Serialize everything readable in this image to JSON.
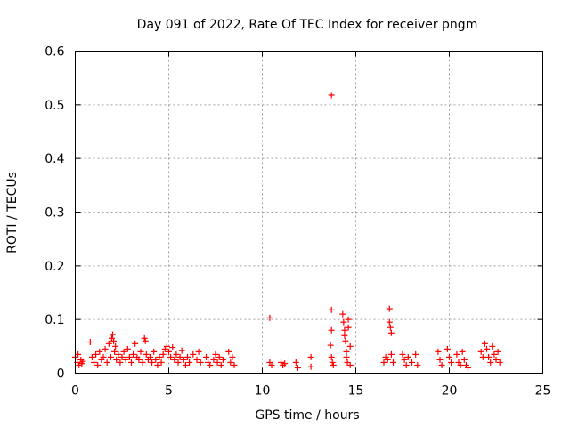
{
  "chart_data": {
    "type": "scatter",
    "title": "Day 091 of 2022, Rate Of TEC Index for receiver pngm",
    "xlabel": "GPS time / hours",
    "ylabel": "ROTI / TECUs",
    "xlim": [
      0,
      25
    ],
    "ylim": [
      0,
      0.6
    ],
    "xticks": [
      0,
      5,
      10,
      15,
      20,
      25
    ],
    "yticks": [
      0,
      0.1,
      0.2,
      0.3,
      0.4,
      0.5,
      0.6
    ],
    "xtick_labels": [
      "0",
      "5",
      "10",
      "15",
      "20",
      "25"
    ],
    "ytick_labels": [
      "0",
      "0.1",
      "0.2",
      "0.3",
      "0.4",
      "0.5",
      "0.6"
    ],
    "grid": true,
    "marker": "+",
    "marker_color": "#ff0000",
    "series": [
      {
        "name": "ROTI",
        "points": [
          [
            0.0,
            0.03
          ],
          [
            0.1,
            0.02
          ],
          [
            0.15,
            0.035
          ],
          [
            0.2,
            0.015
          ],
          [
            0.3,
            0.025
          ],
          [
            0.35,
            0.018
          ],
          [
            0.4,
            0.022
          ],
          [
            0.8,
            0.058
          ],
          [
            0.9,
            0.03
          ],
          [
            1.0,
            0.02
          ],
          [
            1.1,
            0.035
          ],
          [
            1.2,
            0.015
          ],
          [
            1.3,
            0.04
          ],
          [
            1.4,
            0.025
          ],
          [
            1.5,
            0.03
          ],
          [
            1.6,
            0.045
          ],
          [
            1.7,
            0.02
          ],
          [
            1.8,
            0.055
          ],
          [
            1.9,
            0.03
          ],
          [
            1.95,
            0.065
          ],
          [
            2.0,
            0.072
          ],
          [
            2.05,
            0.06
          ],
          [
            2.1,
            0.04
          ],
          [
            2.15,
            0.05
          ],
          [
            2.2,
            0.025
          ],
          [
            2.3,
            0.035
          ],
          [
            2.4,
            0.02
          ],
          [
            2.5,
            0.03
          ],
          [
            2.6,
            0.04
          ],
          [
            2.7,
            0.025
          ],
          [
            2.8,
            0.045
          ],
          [
            2.9,
            0.03
          ],
          [
            3.0,
            0.02
          ],
          [
            3.1,
            0.035
          ],
          [
            3.2,
            0.055
          ],
          [
            3.3,
            0.03
          ],
          [
            3.4,
            0.025
          ],
          [
            3.5,
            0.04
          ],
          [
            3.6,
            0.02
          ],
          [
            3.7,
            0.065
          ],
          [
            3.75,
            0.06
          ],
          [
            3.8,
            0.035
          ],
          [
            3.9,
            0.025
          ],
          [
            4.0,
            0.03
          ],
          [
            4.1,
            0.02
          ],
          [
            4.2,
            0.04
          ],
          [
            4.3,
            0.025
          ],
          [
            4.4,
            0.015
          ],
          [
            4.5,
            0.03
          ],
          [
            4.6,
            0.02
          ],
          [
            4.7,
            0.035
          ],
          [
            4.8,
            0.045
          ],
          [
            4.9,
            0.05
          ],
          [
            5.0,
            0.04
          ],
          [
            5.1,
            0.03
          ],
          [
            5.2,
            0.048
          ],
          [
            5.3,
            0.025
          ],
          [
            5.4,
            0.035
          ],
          [
            5.5,
            0.02
          ],
          [
            5.6,
            0.03
          ],
          [
            5.7,
            0.042
          ],
          [
            5.8,
            0.025
          ],
          [
            5.9,
            0.015
          ],
          [
            6.0,
            0.03
          ],
          [
            6.1,
            0.02
          ],
          [
            6.3,
            0.035
          ],
          [
            6.5,
            0.025
          ],
          [
            6.6,
            0.04
          ],
          [
            6.7,
            0.02
          ],
          [
            7.0,
            0.03
          ],
          [
            7.1,
            0.02
          ],
          [
            7.2,
            0.015
          ],
          [
            7.4,
            0.025
          ],
          [
            7.5,
            0.035
          ],
          [
            7.6,
            0.02
          ],
          [
            7.7,
            0.03
          ],
          [
            7.8,
            0.015
          ],
          [
            7.9,
            0.025
          ],
          [
            8.2,
            0.04
          ],
          [
            8.3,
            0.02
          ],
          [
            8.4,
            0.03
          ],
          [
            8.5,
            0.015
          ],
          [
            10.4,
            0.103
          ],
          [
            10.4,
            0.02
          ],
          [
            10.5,
            0.015
          ],
          [
            11.0,
            0.02
          ],
          [
            11.1,
            0.015
          ],
          [
            11.2,
            0.018
          ],
          [
            11.8,
            0.02
          ],
          [
            11.9,
            0.01
          ],
          [
            12.6,
            0.03
          ],
          [
            12.6,
            0.012
          ],
          [
            13.7,
            0.518
          ],
          [
            13.7,
            0.118
          ],
          [
            13.7,
            0.08
          ],
          [
            13.65,
            0.052
          ],
          [
            13.7,
            0.03
          ],
          [
            13.75,
            0.02
          ],
          [
            13.8,
            0.015
          ],
          [
            14.3,
            0.11
          ],
          [
            14.35,
            0.095
          ],
          [
            14.4,
            0.08
          ],
          [
            14.4,
            0.07
          ],
          [
            14.45,
            0.06
          ],
          [
            14.5,
            0.04
          ],
          [
            14.5,
            0.03
          ],
          [
            14.55,
            0.02
          ],
          [
            14.6,
            0.1
          ],
          [
            14.6,
            0.085
          ],
          [
            14.7,
            0.05
          ],
          [
            14.7,
            0.015
          ],
          [
            16.5,
            0.02
          ],
          [
            16.6,
            0.03
          ],
          [
            16.7,
            0.025
          ],
          [
            16.8,
            0.12
          ],
          [
            16.8,
            0.095
          ],
          [
            16.85,
            0.085
          ],
          [
            16.9,
            0.075
          ],
          [
            16.9,
            0.035
          ],
          [
            17.0,
            0.02
          ],
          [
            17.5,
            0.035
          ],
          [
            17.6,
            0.025
          ],
          [
            17.7,
            0.015
          ],
          [
            17.8,
            0.03
          ],
          [
            18.0,
            0.02
          ],
          [
            18.2,
            0.035
          ],
          [
            18.3,
            0.015
          ],
          [
            19.4,
            0.04
          ],
          [
            19.5,
            0.025
          ],
          [
            19.6,
            0.015
          ],
          [
            19.9,
            0.045
          ],
          [
            20.0,
            0.03
          ],
          [
            20.1,
            0.02
          ],
          [
            20.4,
            0.035
          ],
          [
            20.5,
            0.02
          ],
          [
            20.6,
            0.015
          ],
          [
            20.7,
            0.04
          ],
          [
            20.8,
            0.025
          ],
          [
            20.9,
            0.015
          ],
          [
            21.0,
            0.01
          ],
          [
            21.7,
            0.04
          ],
          [
            21.8,
            0.03
          ],
          [
            21.9,
            0.055
          ],
          [
            22.0,
            0.045
          ],
          [
            22.1,
            0.03
          ],
          [
            22.2,
            0.02
          ],
          [
            22.3,
            0.05
          ],
          [
            22.4,
            0.035
          ],
          [
            22.5,
            0.025
          ],
          [
            22.6,
            0.04
          ],
          [
            22.7,
            0.02
          ]
        ]
      }
    ]
  }
}
